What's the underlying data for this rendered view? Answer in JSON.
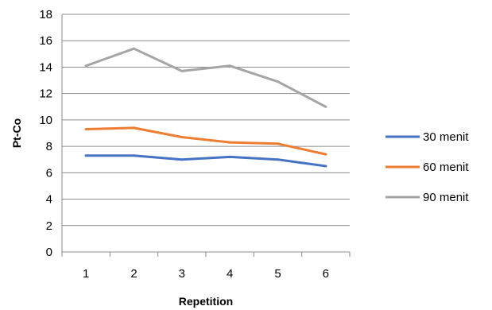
{
  "chart_data": {
    "type": "line",
    "title": "",
    "xlabel": "Repetition",
    "ylabel": "Pt-Co",
    "x": [
      1,
      2,
      3,
      4,
      5,
      6
    ],
    "ylim": [
      0,
      18
    ],
    "yticks": [
      0,
      2,
      4,
      6,
      8,
      10,
      12,
      14,
      16,
      18
    ],
    "grid": true,
    "legend_position": "right",
    "series": [
      {
        "name": "30 menit",
        "color": "#4472C4",
        "values": [
          7.3,
          7.3,
          7.0,
          7.2,
          7.0,
          6.5
        ]
      },
      {
        "name": "60 menit",
        "color": "#ED7D31",
        "values": [
          9.3,
          9.4,
          8.7,
          8.3,
          8.2,
          7.4
        ]
      },
      {
        "name": "90 menit",
        "color": "#A5A5A5",
        "values": [
          14.1,
          15.4,
          13.7,
          14.1,
          12.9,
          11.0
        ]
      }
    ]
  }
}
